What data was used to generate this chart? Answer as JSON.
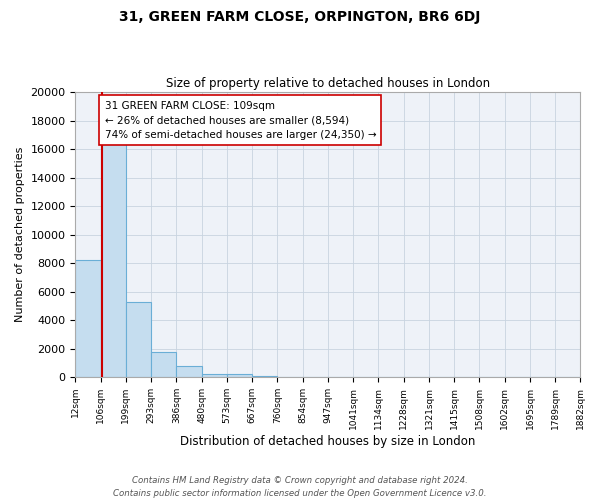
{
  "title_line1": "31, GREEN FARM CLOSE, ORPINGTON, BR6 6DJ",
  "title_line2": "Size of property relative to detached houses in London",
  "xlabel": "Distribution of detached houses by size in London",
  "ylabel": "Number of detached properties",
  "bar_edges": [
    12,
    106,
    199,
    293,
    386,
    480,
    573,
    667,
    760,
    854,
    947,
    1041,
    1134,
    1228,
    1321,
    1415,
    1508,
    1602,
    1695,
    1789,
    1882
  ],
  "bar_heights": [
    8200,
    16600,
    5300,
    1750,
    750,
    250,
    200,
    100,
    0,
    0,
    0,
    0,
    0,
    0,
    0,
    0,
    0,
    0,
    0,
    0
  ],
  "bar_color": "#c5ddef",
  "bar_edge_color": "#6aaed6",
  "property_line_x": 109,
  "property_line_color": "#cc0000",
  "annotation_line1": "31 GREEN FARM CLOSE: 109sqm",
  "annotation_line2": "← 26% of detached houses are smaller (8,594)",
  "annotation_line3": "74% of semi-detached houses are larger (24,350) →",
  "ylim": [
    0,
    20000
  ],
  "yticks": [
    0,
    2000,
    4000,
    6000,
    8000,
    10000,
    12000,
    14000,
    16000,
    18000,
    20000
  ],
  "tick_labels": [
    "12sqm",
    "106sqm",
    "199sqm",
    "293sqm",
    "386sqm",
    "480sqm",
    "573sqm",
    "667sqm",
    "760sqm",
    "854sqm",
    "947sqm",
    "1041sqm",
    "1134sqm",
    "1228sqm",
    "1321sqm",
    "1415sqm",
    "1508sqm",
    "1602sqm",
    "1695sqm",
    "1789sqm",
    "1882sqm"
  ],
  "grid_color": "#c8d4e0",
  "bg_color": "#eef2f8",
  "footnote": "Contains HM Land Registry data © Crown copyright and database right 2024.\nContains public sector information licensed under the Open Government Licence v3.0."
}
